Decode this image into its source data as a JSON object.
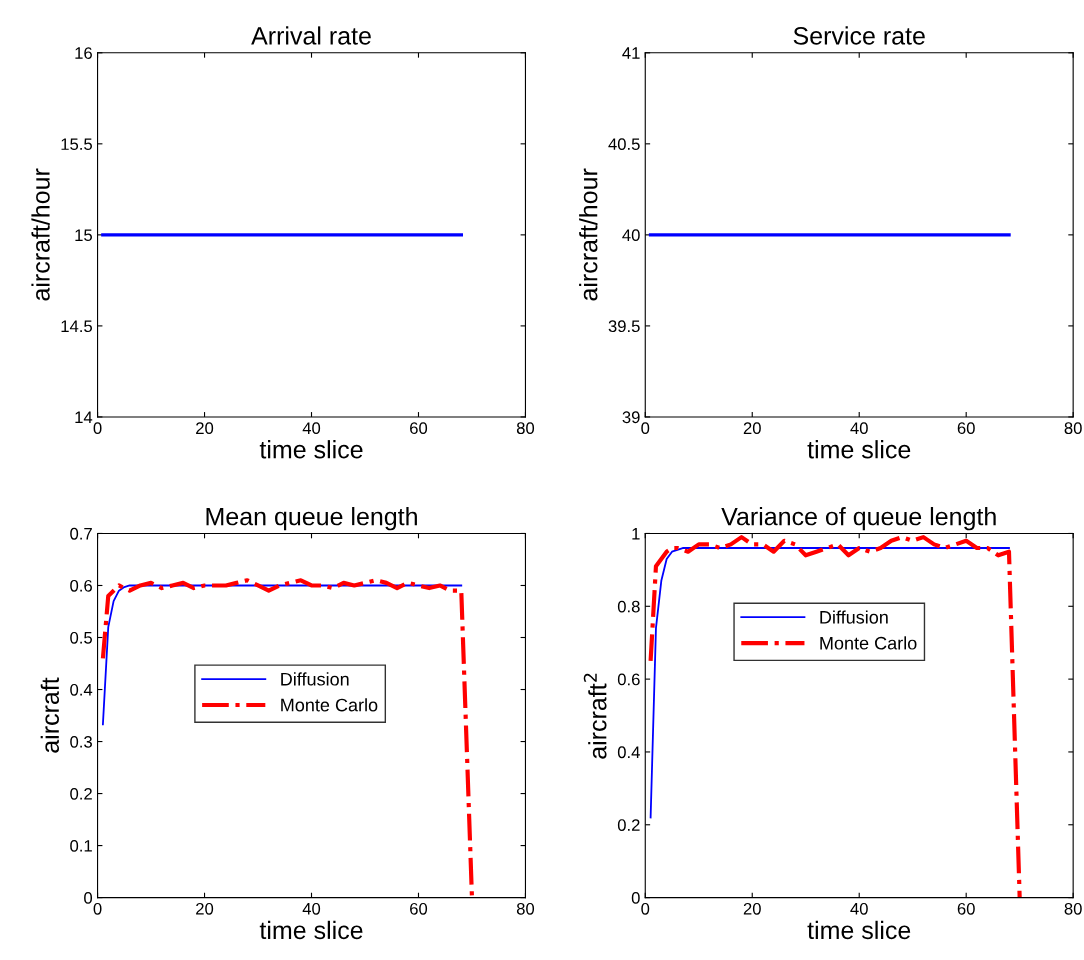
{
  "chart_data": [
    {
      "type": "line",
      "title": "Arrival rate",
      "xlabel": "time slice",
      "ylabel": "aircraft/hour",
      "xlim": [
        0,
        80
      ],
      "xticks": [
        0,
        20,
        40,
        60,
        80
      ],
      "ylim": [
        14,
        16
      ],
      "yticks": [
        14,
        14.5,
        15,
        15.5,
        16
      ],
      "grid": false,
      "legend": false,
      "series": [
        {
          "color": "#0000ff",
          "x": [
            1,
            68
          ],
          "values": [
            15,
            15
          ],
          "line_style": "solid"
        }
      ]
    },
    {
      "type": "line",
      "title": "Service rate",
      "xlabel": "time slice",
      "ylabel": "aircraft/hour",
      "xlim": [
        0,
        80
      ],
      "xticks": [
        0,
        20,
        40,
        60,
        80
      ],
      "ylim": [
        39,
        41
      ],
      "yticks": [
        39,
        39.5,
        40,
        40.5,
        41
      ],
      "grid": false,
      "legend": false,
      "series": [
        {
          "color": "#0000ff",
          "x": [
            1,
            68
          ],
          "values": [
            40,
            40
          ],
          "line_style": "solid"
        }
      ]
    },
    {
      "type": "line",
      "title": "Mean queue length",
      "xlabel": "time slice",
      "ylabel": "aircraft",
      "xlim": [
        0,
        80
      ],
      "xticks": [
        0,
        20,
        40,
        60,
        80
      ],
      "ylim": [
        0,
        0.7
      ],
      "yticks": [
        0,
        0.1,
        0.2,
        0.3,
        0.4,
        0.5,
        0.6,
        0.7
      ],
      "grid": false,
      "legend": "center",
      "series": [
        {
          "name": "Diffusion",
          "color": "#0000ff",
          "line_style": "solid",
          "x": [
            1,
            2,
            3,
            4,
            5,
            6,
            68
          ],
          "values": [
            0.333,
            0.52,
            0.57,
            0.59,
            0.597,
            0.6,
            0.6
          ]
        },
        {
          "name": "Monte Carlo",
          "color": "#ff0000",
          "line_style": "dashed",
          "x": [
            1,
            2,
            3,
            4,
            5,
            6,
            8,
            10,
            12,
            14,
            16,
            18,
            20,
            22,
            24,
            26,
            28,
            30,
            32,
            34,
            36,
            38,
            40,
            42,
            44,
            46,
            48,
            50,
            52,
            54,
            56,
            58,
            60,
            62,
            64,
            66,
            68,
            70
          ],
          "values": [
            0.46,
            0.58,
            0.59,
            0.6,
            0.595,
            0.59,
            0.6,
            0.605,
            0.595,
            0.6,
            0.605,
            0.595,
            0.6,
            0.6,
            0.6,
            0.605,
            0.61,
            0.6,
            0.59,
            0.6,
            0.605,
            0.61,
            0.6,
            0.6,
            0.595,
            0.605,
            0.6,
            0.605,
            0.61,
            0.605,
            0.595,
            0.605,
            0.6,
            0.595,
            0.6,
            0.59,
            0.59,
            0
          ]
        }
      ]
    },
    {
      "type": "line",
      "title": "Variance of queue length",
      "xlabel": "time slice",
      "ylabel": "aircraft$^{2}$",
      "xlim": [
        0,
        80
      ],
      "xticks": [
        0,
        20,
        40,
        60,
        80
      ],
      "ylim": [
        0,
        1
      ],
      "yticks": [
        0,
        0.2,
        0.4,
        0.6,
        0.8,
        1
      ],
      "grid": false,
      "legend": "top",
      "series": [
        {
          "name": "Diffusion",
          "color": "#0000ff",
          "line_style": "solid",
          "x": [
            1,
            2,
            3,
            4,
            5,
            6,
            7,
            68
          ],
          "values": [
            0.22,
            0.74,
            0.87,
            0.93,
            0.95,
            0.955,
            0.96,
            0.96
          ]
        },
        {
          "name": "Monte Carlo",
          "color": "#ff0000",
          "line_style": "dashed",
          "x": [
            1,
            2,
            3,
            4,
            5,
            6,
            8,
            10,
            12,
            14,
            16,
            18,
            20,
            22,
            24,
            26,
            28,
            30,
            32,
            34,
            36,
            38,
            40,
            42,
            44,
            46,
            48,
            50,
            52,
            54,
            56,
            58,
            60,
            62,
            64,
            66,
            68,
            70
          ],
          "values": [
            0.65,
            0.91,
            0.93,
            0.95,
            0.96,
            0.96,
            0.95,
            0.97,
            0.97,
            0.96,
            0.97,
            0.99,
            0.97,
            0.97,
            0.95,
            0.98,
            0.97,
            0.94,
            0.95,
            0.96,
            0.97,
            0.94,
            0.96,
            0.95,
            0.96,
            0.98,
            0.99,
            0.98,
            0.99,
            0.97,
            0.96,
            0.97,
            0.98,
            0.96,
            0.96,
            0.94,
            0.95,
            0
          ]
        }
      ]
    }
  ]
}
